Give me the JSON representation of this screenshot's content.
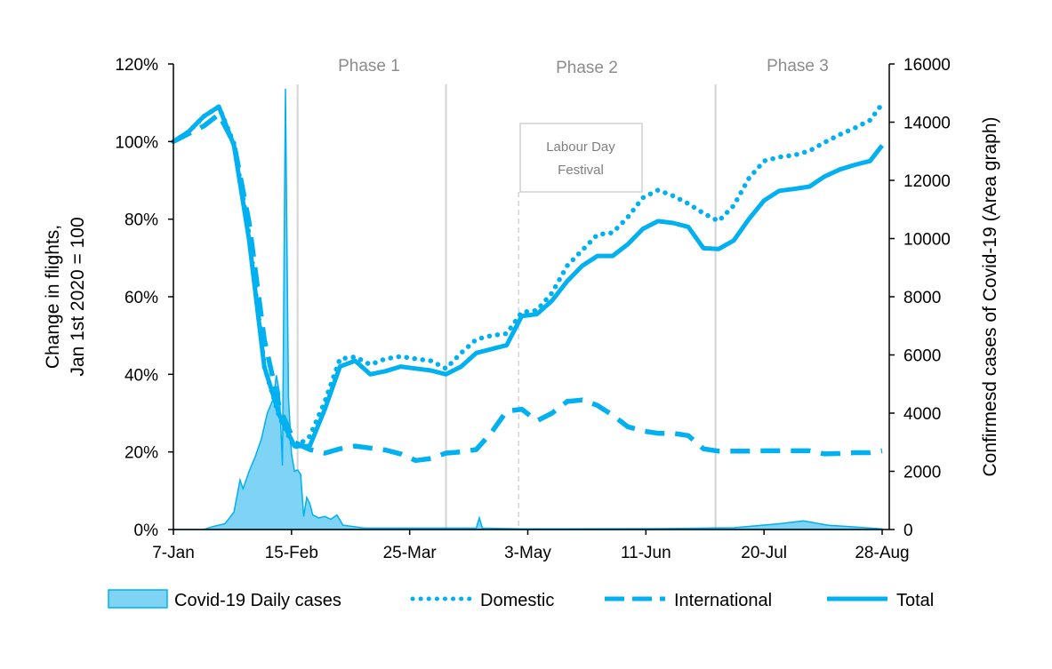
{
  "chart_data": {
    "type": "line",
    "title": "",
    "xlabel": "",
    "ylabel": [
      "Change in flights,",
      "Jan 1st 2020 = 100"
    ],
    "y2label": "Confirmesd cases of Covid-19 (Area graph)",
    "xticks": [
      "7-Jan",
      "15-Feb",
      "25-Mar",
      "3-May",
      "11-Jun",
      "20-Jul",
      "28-Aug"
    ],
    "ylim": [
      0,
      120
    ],
    "yticks": [
      "0%",
      "20%",
      "40%",
      "60%",
      "80%",
      "100%",
      "120%"
    ],
    "y2lim": [
      0,
      16000
    ],
    "y2ticks": [
      "0",
      "2000",
      "4000",
      "6000",
      "8000",
      "10000",
      "12000",
      "14000",
      "16000"
    ],
    "grid": false,
    "legend": "bottom",
    "color": "#00B0F0",
    "area_color": "#7FD4F5",
    "x": [
      "7-Jan",
      "12-Jan",
      "17-Jan",
      "22-Jan",
      "27-Jan",
      "1-Feb",
      "6-Feb",
      "11-Feb",
      "16-Feb",
      "21-Feb",
      "26-Feb",
      "2-Mar",
      "7-Mar",
      "12-Mar",
      "17-Mar",
      "22-Mar",
      "27-Mar",
      "1-Apr",
      "6-Apr",
      "11-Apr",
      "16-Apr",
      "21-Apr",
      "26-Apr",
      "1-May",
      "6-May",
      "11-May",
      "16-May",
      "21-May",
      "26-May",
      "31-May",
      "5-Jun",
      "10-Jun",
      "15-Jun",
      "20-Jun",
      "25-Jun",
      "30-Jun",
      "5-Jul",
      "10-Jul",
      "15-Jul",
      "20-Jul",
      "25-Jul",
      "30-Jul",
      "4-Aug",
      "9-Aug",
      "14-Aug",
      "19-Aug",
      "24-Aug",
      "28-Aug"
    ],
    "series": [
      {
        "name": "Domestic",
        "style": "dotted",
        "axis": "left",
        "values": [
          100,
          102.5,
          106.5,
          109,
          99.5,
          76,
          42,
          29,
          21,
          24,
          33,
          44,
          44.5,
          42.5,
          44,
          44.6,
          44,
          43.5,
          41.5,
          45.5,
          49,
          50,
          50.5,
          56,
          56.5,
          61,
          68,
          72,
          76,
          76.5,
          80.5,
          85.5,
          87.5,
          86,
          84,
          81.5,
          79.5,
          83.5,
          90.5,
          95,
          96,
          96.5,
          97.6,
          99.8,
          101.8,
          103.5,
          105.5,
          109.7
        ]
      },
      {
        "name": "International",
        "style": "dashed",
        "axis": "left",
        "values": [
          100,
          102,
          104,
          107,
          99.5,
          79.2,
          49,
          31.5,
          22.5,
          20.6,
          19.7,
          20.8,
          21.5,
          21,
          20.5,
          19.5,
          17.8,
          18.3,
          19.7,
          20,
          20.6,
          25,
          30.5,
          31,
          28,
          30,
          33,
          33.4,
          32,
          29.5,
          26.5,
          25.4,
          24.8,
          24.8,
          24.2,
          20.8,
          20.2,
          20.2,
          20.2,
          20.3,
          20.3,
          20.3,
          20.3,
          19.5,
          19.6,
          19.8,
          19.8,
          20.3
        ]
      },
      {
        "name": "Total",
        "style": "solid",
        "axis": "left",
        "values": [
          100,
          102.5,
          106.5,
          109,
          99,
          74.7,
          42,
          29.5,
          21.5,
          21.5,
          31,
          42,
          43.5,
          40,
          40.8,
          42,
          41.5,
          41,
          40,
          42,
          45.5,
          46.5,
          47.5,
          55,
          55.5,
          59,
          64,
          68,
          70.5,
          70.5,
          73.5,
          77.5,
          79.5,
          79,
          78,
          72.5,
          72.3,
          74.5,
          80,
          84.8,
          87.3,
          87.8,
          88.4,
          91,
          92.8,
          94,
          95,
          99
        ]
      }
    ],
    "area_series": {
      "name": "Covid-19 Daily cases",
      "axis": "right",
      "x": [
        "7-Jan",
        "17-Jan",
        "20-Jan",
        "24-Jan",
        "27-Jan",
        "29-Jan",
        "30-Jan",
        "1-Feb",
        "3-Feb",
        "5-Feb",
        "7-Feb",
        "9-Feb",
        "10-Feb",
        "11-Feb",
        "12-Feb",
        "13-Feb",
        "14-Feb",
        "15-Feb",
        "16-Feb",
        "17-Feb",
        "18-Feb",
        "19-Feb",
        "20-Feb",
        "21-Feb",
        "22-Feb",
        "24-Feb",
        "26-Feb",
        "28-Feb",
        "1-Mar",
        "3-Mar",
        "10-Mar",
        "16-Apr",
        "17-Apr",
        "18-Apr",
        "1-May",
        "15-Jun",
        "10-Jul",
        "25-Jul",
        "2-Aug",
        "10-Aug",
        "20-Aug",
        "28-Aug"
      ],
      "values": [
        0,
        0,
        100,
        200,
        600,
        1700,
        1400,
        2000,
        2500,
        3100,
        4000,
        4500,
        5300,
        4700,
        2200,
        15150,
        4550,
        2600,
        2000,
        2050,
        1900,
        450,
        1100,
        900,
        500,
        400,
        450,
        350,
        500,
        150,
        50,
        50,
        400,
        50,
        20,
        30,
        60,
        200,
        300,
        150,
        80,
        20
      ]
    },
    "phases": [
      {
        "label": "Phase 1",
        "start": "17-Feb"
      },
      {
        "label": "Phase 2",
        "start": "6-Apr"
      },
      {
        "label": "Phase 3",
        "start": "4-Jul"
      }
    ],
    "annotation": {
      "lines": [
        "Labour Day",
        "Festival"
      ],
      "date": "30-Apr"
    }
  }
}
